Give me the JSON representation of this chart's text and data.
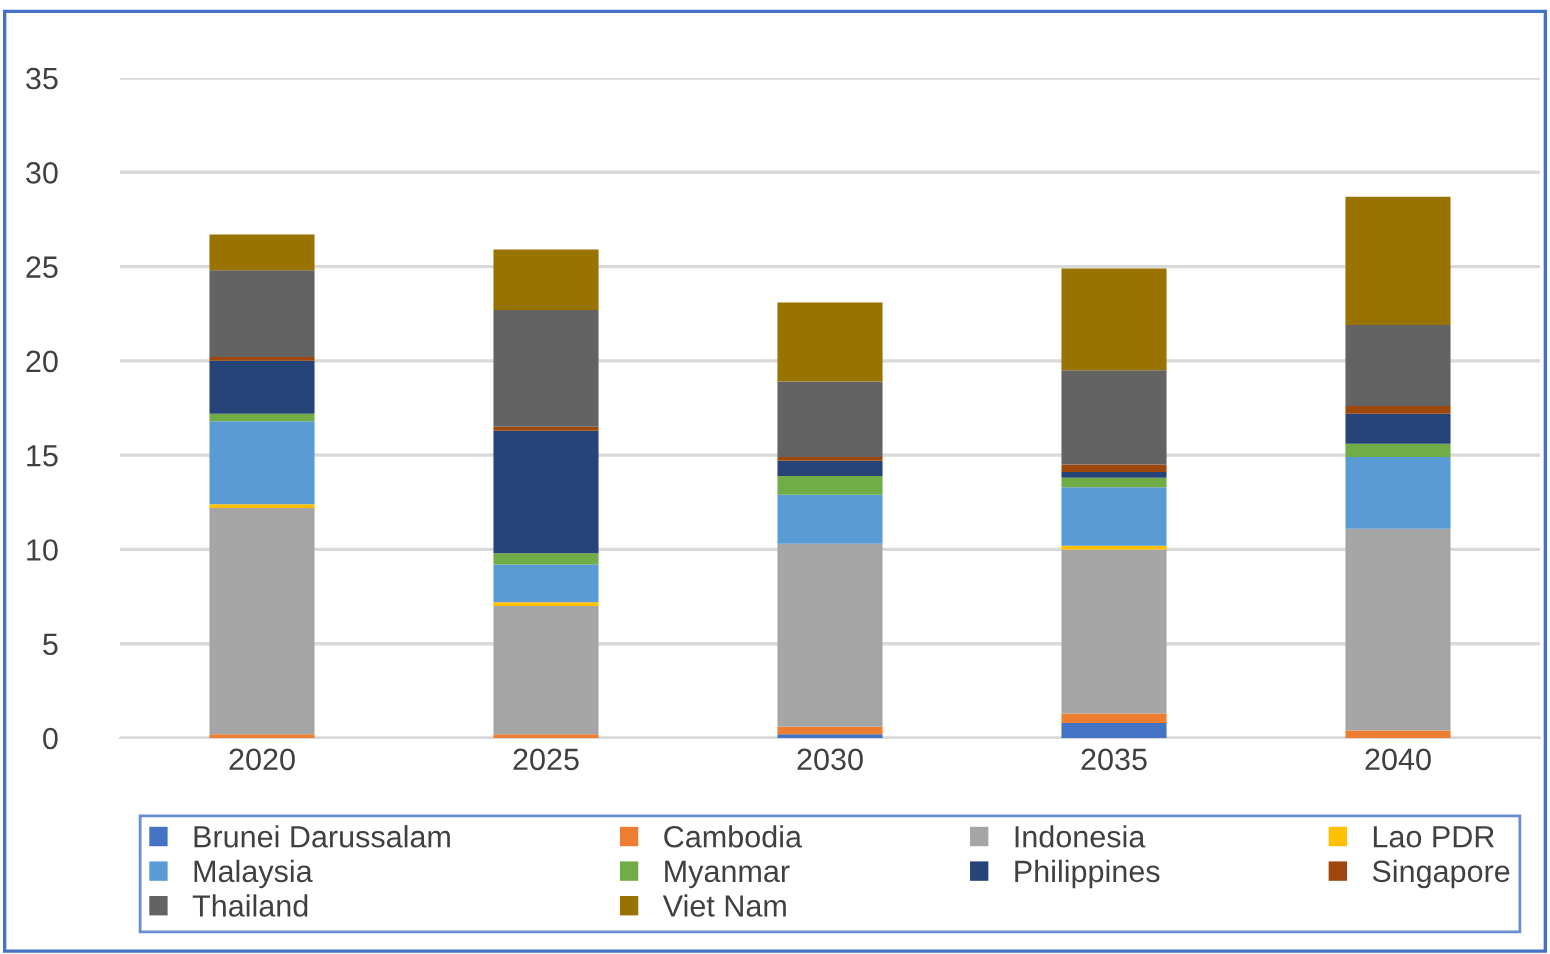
{
  "chart_data": {
    "type": "bar",
    "stacked": true,
    "categories": [
      "2020",
      "2025",
      "2030",
      "2035",
      "2040"
    ],
    "series": [
      {
        "name": "Brunei Darussalam",
        "color": "#4472c4",
        "values": [
          0,
          0,
          0.2,
          0.8,
          0
        ]
      },
      {
        "name": "Cambodia",
        "color": "#ed7d31",
        "values": [
          0.2,
          0.2,
          0.4,
          0.5,
          0.4
        ]
      },
      {
        "name": "Indonesia",
        "color": "#a5a5a5",
        "values": [
          12.0,
          6.8,
          9.7,
          8.7,
          10.7
        ]
      },
      {
        "name": "Lao PDR",
        "color": "#ffc000",
        "values": [
          0.2,
          0.2,
          0,
          0.2,
          0
        ]
      },
      {
        "name": "Malaysia",
        "color": "#5b9bd5",
        "values": [
          4.4,
          2.0,
          2.6,
          3.1,
          3.8
        ]
      },
      {
        "name": "Myanmar",
        "color": "#70ad47",
        "values": [
          0.4,
          0.6,
          1.0,
          0.5,
          0.7
        ]
      },
      {
        "name": "Philippines",
        "color": "#264478",
        "values": [
          2.8,
          6.5,
          0.8,
          0.3,
          1.6
        ]
      },
      {
        "name": "Singapore",
        "color": "#9e480e",
        "values": [
          0.2,
          0.2,
          0.2,
          0.4,
          0.4
        ]
      },
      {
        "name": "Thailand",
        "color": "#636363",
        "values": [
          4.6,
          6.2,
          4.0,
          5.0,
          4.3
        ]
      },
      {
        "name": "Viet Nam",
        "color": "#997300",
        "values": [
          1.9,
          3.2,
          4.2,
          5.4,
          6.8
        ]
      }
    ],
    "ylim": [
      0,
      35
    ],
    "yticks": [
      0,
      5,
      10,
      15,
      20,
      25,
      30,
      35
    ],
    "grid": "y",
    "legend": "bottom"
  }
}
